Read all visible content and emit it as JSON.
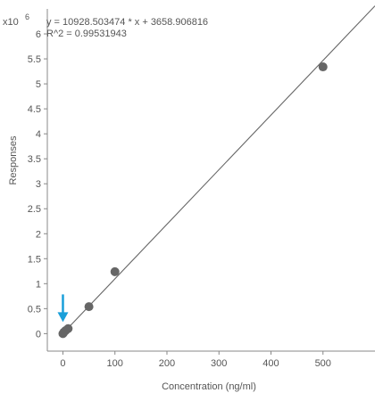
{
  "chart_data": {
    "type": "scatter",
    "title": "",
    "xlabel": "Concentration (ng/ml)",
    "ylabel": "Responses",
    "y_multiplier": {
      "base": "x10",
      "exponent": "6"
    },
    "xlim": [
      -30,
      600
    ],
    "ylim": [
      -0.35,
      6.5
    ],
    "x_ticks": [
      0,
      100,
      200,
      300,
      400,
      500
    ],
    "x_tick_labels": [
      "0",
      "100",
      "200",
      "300",
      "400",
      "500"
    ],
    "y_ticks": [
      0,
      0.5,
      1,
      1.5,
      2,
      2.5,
      3,
      3.5,
      4,
      4.5,
      5,
      5.5,
      6
    ],
    "y_tick_labels": [
      "0",
      "0.5",
      "1",
      "1.5",
      "2",
      "2.5",
      "3",
      "3.5",
      "4",
      "4.5",
      "5",
      "5.5",
      "6"
    ],
    "grid": false,
    "series": [
      {
        "points": [
          {
            "x": 0,
            "y": 0.0
          },
          {
            "x": 2,
            "y": 0.03
          },
          {
            "x": 5,
            "y": 0.06
          },
          {
            "x": 10,
            "y": 0.1
          },
          {
            "x": 50,
            "y": 0.54
          },
          {
            "x": 100,
            "y": 1.24
          },
          {
            "x": 500,
            "y": 5.34
          }
        ],
        "color": "#666666"
      }
    ],
    "fit_line": {
      "slope_per_unit_x": 0.010928503474,
      "intercept": 0.003658906816,
      "color": "#666666"
    },
    "annotations": {
      "equation": "y = 10928.503474 * x  + 3658.906816",
      "r_squared": "R^2 = 0.99531943"
    },
    "marker_arrow": {
      "x": 0,
      "y": 0,
      "color": "#1a9fd9"
    }
  }
}
